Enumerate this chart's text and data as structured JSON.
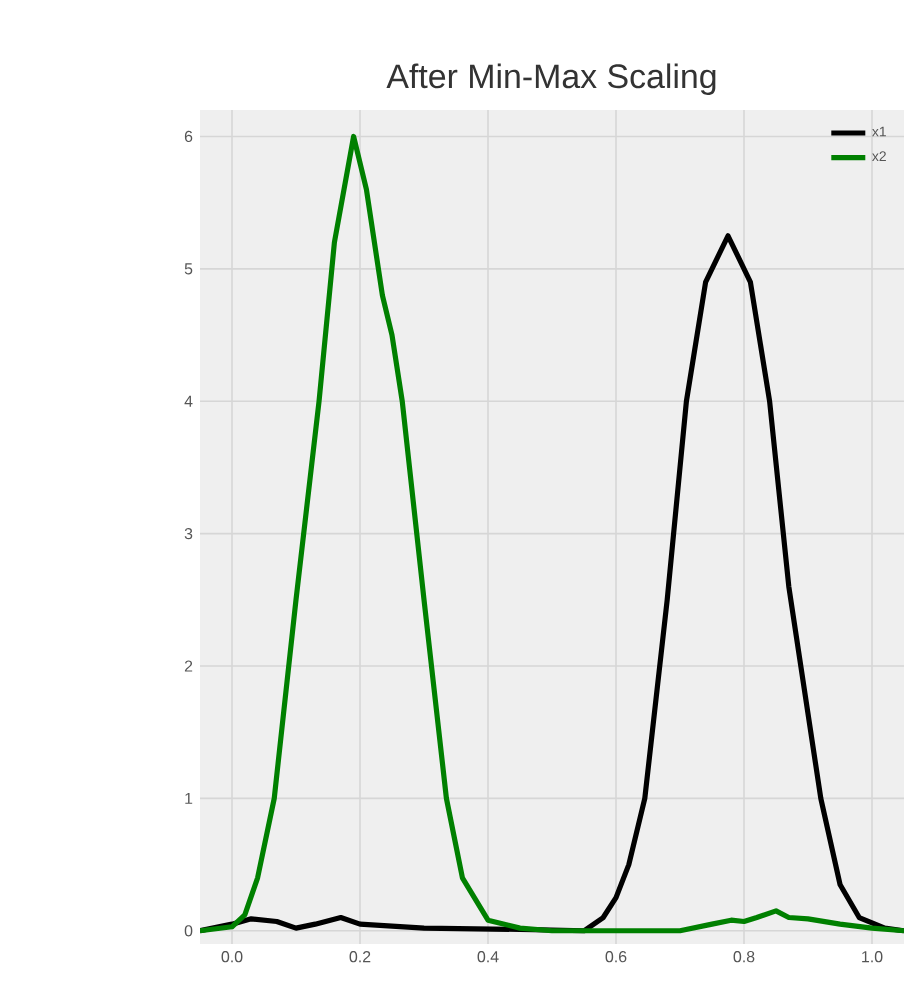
{
  "chart_data": {
    "type": "line",
    "title": "After Min-Max Scaling",
    "xlim": [
      -0.05,
      1.05
    ],
    "ylim": [
      -0.1,
      6.2
    ],
    "xticks": [
      {
        "value": 0,
        "label": "0.0"
      },
      0.2,
      0.4,
      0.6,
      0.8,
      {
        "value": 1,
        "label": "1.0"
      }
    ],
    "yticks": [
      0,
      1,
      2,
      3,
      4,
      5,
      6
    ],
    "grid": true,
    "legend": "top right",
    "line_style": "solid",
    "marker": "none",
    "series": [
      {
        "name": "x1",
        "color": "#000000",
        "x": [
          -0.05,
          0,
          0.03,
          0.07,
          0.1,
          0.13,
          0.17,
          0.2,
          0.3,
          0.45,
          0.55,
          0.58,
          0.6,
          0.62,
          0.645,
          0.68,
          0.71,
          0.74,
          0.775,
          0.81,
          0.84,
          0.87,
          0.92,
          0.95,
          0.98,
          1.02,
          1.05
        ],
        "values": [
          0,
          0.05,
          0.09,
          0.07,
          0.02,
          0.05,
          0.1,
          0.05,
          0.02,
          0.01,
          0,
          0.1,
          0.25,
          0.5,
          1.0,
          2.5,
          4.0,
          4.9,
          5.25,
          4.9,
          4.0,
          2.6,
          1.0,
          0.35,
          0.1,
          0.02,
          0
        ]
      },
      {
        "name": "x2",
        "color": "#008000",
        "x": [
          -0.05,
          0,
          0.02,
          0.04,
          0.066,
          0.1,
          0.136,
          0.16,
          0.19,
          0.21,
          0.235,
          0.25,
          0.266,
          0.3,
          0.335,
          0.36,
          0.4,
          0.45,
          0.5,
          0.7,
          0.75,
          0.78,
          0.8,
          0.82,
          0.85,
          0.87,
          0.9,
          0.95,
          1.0,
          1.05
        ],
        "values": [
          0,
          0.03,
          0.12,
          0.4,
          1.0,
          2.5,
          4.0,
          5.2,
          6.0,
          5.6,
          4.8,
          4.5,
          4.0,
          2.5,
          1.0,
          0.4,
          0.08,
          0.02,
          0,
          0,
          0.05,
          0.08,
          0.07,
          0.1,
          0.15,
          0.1,
          0.09,
          0.05,
          0.02,
          0
        ]
      }
    ]
  }
}
